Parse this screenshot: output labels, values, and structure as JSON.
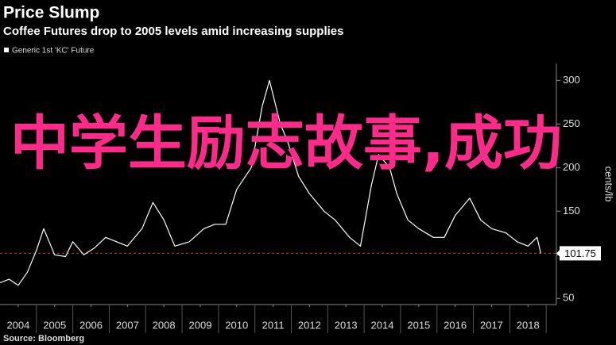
{
  "chart_data": {
    "type": "line",
    "title": "Price Slump",
    "subtitle": "Coffee Futures drop to 2005 levels amid increasing supplies",
    "y_axis_label": "cents/lb",
    "source": "Source: Bloomberg",
    "overlay_text": "中学生励志故事,成功",
    "xlim": [
      2004,
      2019.28
    ],
    "xticks": [
      {
        "value": 2004.5,
        "label": "2004"
      },
      {
        "value": 2005.5,
        "label": "2005"
      },
      {
        "value": 2006.5,
        "label": "2006"
      },
      {
        "value": 2007.5,
        "label": "2007"
      },
      {
        "value": 2008.5,
        "label": "2008"
      },
      {
        "value": 2009.5,
        "label": "2009"
      },
      {
        "value": 2010.5,
        "label": "2010"
      },
      {
        "value": 2011.5,
        "label": "2011"
      },
      {
        "value": 2012.5,
        "label": "2012"
      },
      {
        "value": 2013.5,
        "label": "2013"
      },
      {
        "value": 2014.5,
        "label": "2014"
      },
      {
        "value": 2015.5,
        "label": "2015"
      },
      {
        "value": 2016.5,
        "label": "2016"
      },
      {
        "value": 2017.5,
        "label": "2017"
      },
      {
        "value": 2018.5,
        "label": "2018"
      }
    ],
    "ylim": [
      43,
      314
    ],
    "yticks": [
      50,
      100,
      150,
      200,
      250,
      300
    ],
    "grid": false,
    "series": [
      {
        "name": "Generic 1st 'KC' Future",
        "color": "#ffffff",
        "x": [
          2004.0,
          2004.25,
          2004.5,
          2004.75,
          2005.0,
          2005.2,
          2005.5,
          2005.8,
          2006.0,
          2006.3,
          2006.6,
          2006.9,
          2007.2,
          2007.5,
          2007.9,
          2008.2,
          2008.5,
          2008.8,
          2009.2,
          2009.6,
          2009.9,
          2010.2,
          2010.5,
          2010.9,
          2011.2,
          2011.4,
          2011.7,
          2011.9,
          2012.2,
          2012.5,
          2012.9,
          2013.2,
          2013.6,
          2013.9,
          2014.2,
          2014.4,
          2014.7,
          2014.9,
          2015.2,
          2015.5,
          2015.9,
          2016.2,
          2016.5,
          2016.9,
          2017.2,
          2017.5,
          2017.9,
          2018.2,
          2018.5,
          2018.75,
          2018.85
        ],
        "values": [
          68,
          72,
          65,
          80,
          105,
          130,
          100,
          98,
          115,
          100,
          108,
          120,
          115,
          110,
          130,
          160,
          140,
          110,
          115,
          130,
          135,
          135,
          175,
          200,
          270,
          300,
          250,
          230,
          190,
          170,
          150,
          140,
          120,
          110,
          180,
          215,
          200,
          170,
          140,
          130,
          120,
          120,
          145,
          165,
          140,
          130,
          125,
          115,
          110,
          120,
          101.75
        ]
      }
    ],
    "reference_line_color": "#d0342c"
  }
}
